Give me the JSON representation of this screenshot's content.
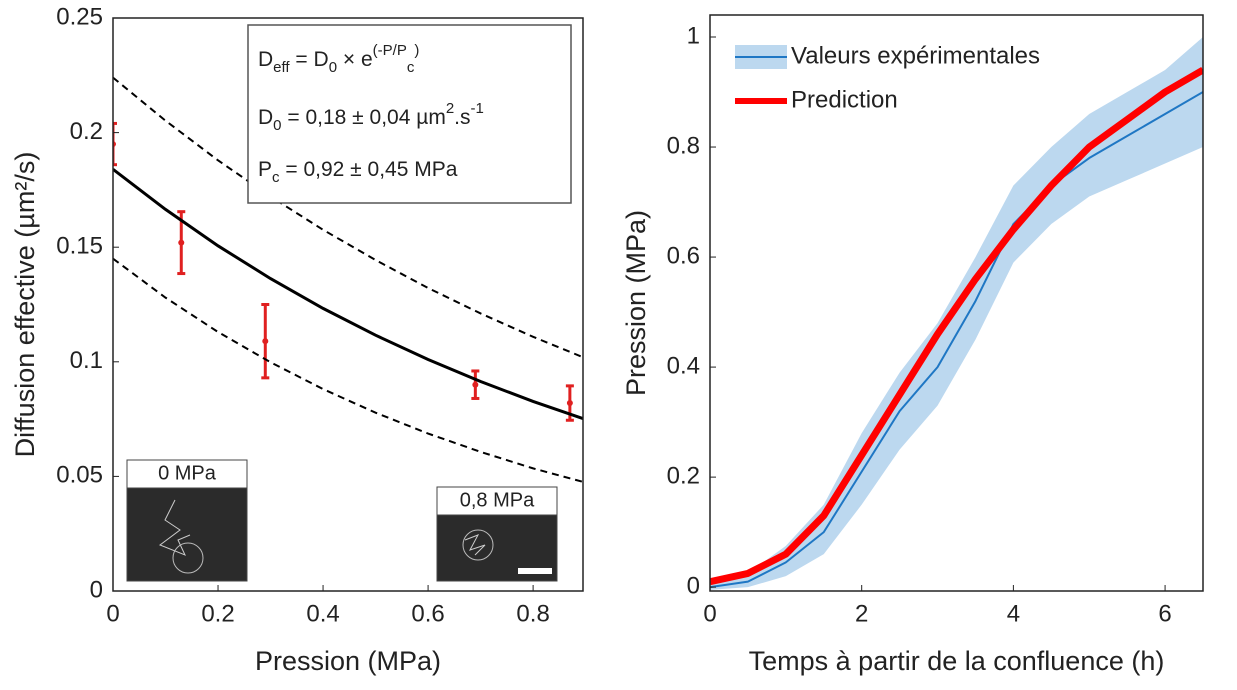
{
  "chart_data": [
    {
      "type": "scatter",
      "xlabel": "Pression (MPa)",
      "ylabel": "Diffusion effective (µm²/s)",
      "xlim": [
        0,
        0.895
      ],
      "ylim": [
        0,
        0.25
      ],
      "xticks": [
        0,
        0.2,
        0.4,
        0.6,
        0.8
      ],
      "yticks": [
        0,
        0.05,
        0.1,
        0.15,
        0.2,
        0.25
      ],
      "series": [
        {
          "style": "errorbar",
          "color": "#e02020",
          "x": [
            0,
            0.13,
            0.29,
            0.69,
            0.87
          ],
          "values": [
            0.195,
            0.152,
            0.109,
            0.09,
            0.082
          ],
          "errors": [
            0.009,
            0.0135,
            0.016,
            0.006,
            0.0075
          ]
        },
        {
          "style": "solid",
          "color": "#000000",
          "x": [
            0,
            0.1,
            0.2,
            0.3,
            0.4,
            0.5,
            0.6,
            0.7,
            0.8,
            0.895
          ],
          "values": [
            0.184,
            0.1665,
            0.1506,
            0.1363,
            0.1233,
            0.1116,
            0.101,
            0.0914,
            0.0827,
            0.0752
          ]
        },
        {
          "style": "dashed",
          "color": "#000000",
          "x": [
            0,
            0.1,
            0.2,
            0.3,
            0.4,
            0.5,
            0.6,
            0.7,
            0.8,
            0.895
          ],
          "values": [
            0.224,
            0.2052,
            0.1879,
            0.1721,
            0.1576,
            0.1444,
            0.1322,
            0.1211,
            0.1109,
            0.102
          ]
        },
        {
          "style": "dashed",
          "color": "#000000",
          "x": [
            0,
            0.1,
            0.2,
            0.3,
            0.4,
            0.5,
            0.6,
            0.7,
            0.8,
            0.895
          ],
          "values": [
            0.145,
            0.128,
            0.113,
            0.0998,
            0.0881,
            0.0778,
            0.0687,
            0.0607,
            0.0535,
            0.0476
          ]
        }
      ],
      "annotations": [
        [
          "D",
          "eff",
          " = D",
          "0",
          " × e",
          "(-P/P",
          "c",
          ")"
        ],
        [
          "D",
          "0",
          " = 0,18 ± 0,04 µm",
          "2",
          ".s",
          "-1"
        ],
        [
          "P",
          "c",
          " = 0,92 ± 0,45 MPa"
        ]
      ],
      "insets": [
        "0 MPa",
        "0,8 MPa"
      ]
    },
    {
      "type": "line",
      "xlabel": "Temps à partir de la confluence (h)",
      "ylabel": "Pression (MPa)",
      "xlim": [
        0,
        6.5
      ],
      "ylim": [
        -0.007,
        1.04
      ],
      "xticks": [
        0,
        2,
        4,
        6
      ],
      "yticks": [
        0,
        0.2,
        0.4,
        0.6,
        0.8,
        1
      ],
      "legend": "upper left",
      "series": [
        {
          "name": "Valeurs expérimentales",
          "color": "#1f77c4",
          "band_color": "#bcd8ef",
          "x": [
            0,
            0.5,
            1,
            1.5,
            2,
            2.5,
            3,
            3.5,
            4,
            4.5,
            5,
            5.5,
            6,
            6.5
          ],
          "values": [
            0,
            0.01,
            0.045,
            0.1,
            0.21,
            0.32,
            0.4,
            0.52,
            0.66,
            0.73,
            0.78,
            0.82,
            0.86,
            0.9
          ],
          "lower": [
            -0.005,
            0.0,
            0.02,
            0.06,
            0.15,
            0.25,
            0.33,
            0.45,
            0.59,
            0.66,
            0.71,
            0.74,
            0.77,
            0.8
          ],
          "upper": [
            0.01,
            0.025,
            0.075,
            0.15,
            0.28,
            0.39,
            0.48,
            0.6,
            0.73,
            0.8,
            0.86,
            0.9,
            0.94,
            1.0
          ]
        },
        {
          "name": "Prediction",
          "color": "#ff0000",
          "x": [
            0,
            0.5,
            1,
            1.5,
            2,
            2.5,
            3,
            3.5,
            4,
            4.5,
            5,
            5.5,
            6,
            6.5
          ],
          "values": [
            0.01,
            0.025,
            0.06,
            0.13,
            0.24,
            0.35,
            0.46,
            0.56,
            0.65,
            0.73,
            0.8,
            0.85,
            0.9,
            0.94
          ]
        }
      ]
    }
  ]
}
